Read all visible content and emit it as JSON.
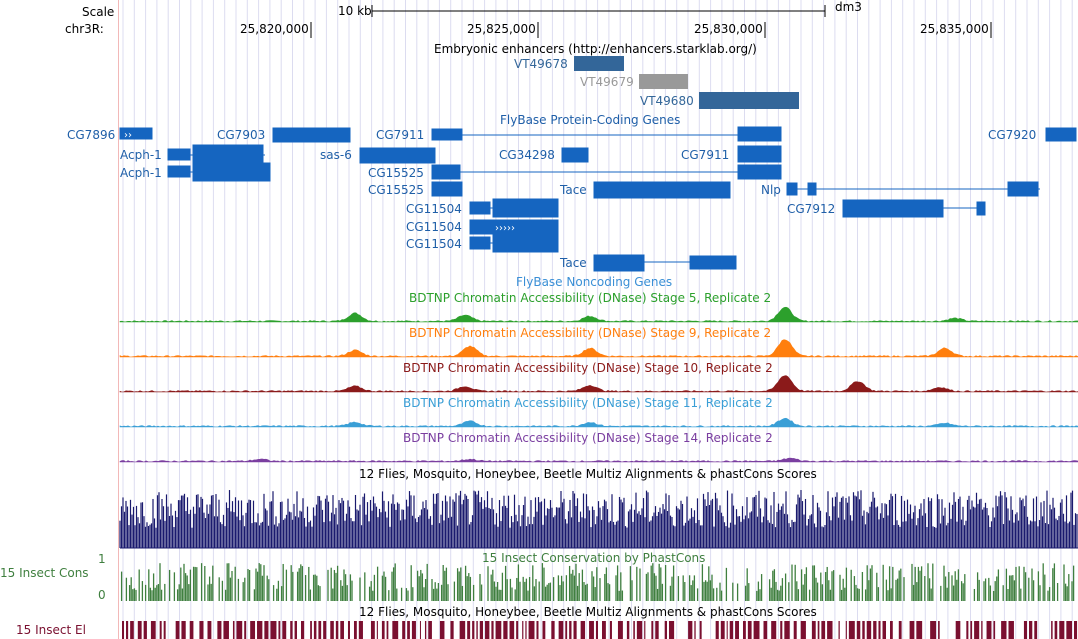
{
  "ruler": {
    "scale_label": "Scale",
    "chrom_label": "chr3R:",
    "scale_text": "10 kb",
    "assembly": "dm3",
    "ticks": [
      {
        "label": "25,820,000",
        "pos": 25820000
      },
      {
        "label": "25,825,000",
        "pos": 25825000
      },
      {
        "label": "25,830,000",
        "pos": 25830000
      },
      {
        "label": "25,835,000",
        "pos": 25835000
      }
    ]
  },
  "tracks": {
    "enhancers": {
      "title": "Embryonic enhancers (http://enhancers.starklab.org/)",
      "items": [
        {
          "name": "VT49678",
          "color": "#336699"
        },
        {
          "name": "VT49679",
          "color": "#999999"
        },
        {
          "name": "VT49680",
          "color": "#336699"
        }
      ]
    },
    "flybase_coding": {
      "title": "FlyBase Protein-Coding Genes",
      "genes": [
        "CG7896",
        "CG7903",
        "CG7911",
        "CG7920",
        "Acph-1",
        "sas-6",
        "CG34298",
        "CG7911",
        "Acph-1",
        "CG15525",
        "CG15525",
        "Tace",
        "Nlp",
        "CG7912",
        "CG11504",
        "CG11504",
        "CG11504"
      ]
    },
    "flybase_noncoding": {
      "title": "FlyBase Noncoding Genes",
      "genes": [
        "Tace"
      ]
    },
    "dnase": [
      {
        "title": "BDTNP Chromatin Accessibility (DNase) Stage 5, Replicate 2",
        "color": "#2ca02c"
      },
      {
        "title": "BDTNP Chromatin Accessibility (DNase) Stage 9, Replicate 2",
        "color": "#ff7f0e"
      },
      {
        "title": "BDTNP Chromatin Accessibility (DNase) Stage 10, Replicate 2",
        "color": "#8b1a1a"
      },
      {
        "title": "BDTNP Chromatin Accessibility (DNase) Stage 11, Replicate 2",
        "color": "#3a9fd6"
      },
      {
        "title": "BDTNP Chromatin Accessibility (DNase) Stage 14, Replicate 2",
        "color": "#7b3fa0"
      }
    ],
    "multiz": {
      "title": "12 Flies, Mosquito, Honeybee, Beetle Multiz Alignments & phastCons Scores",
      "color": "#1a1a6e"
    },
    "phastcons": {
      "title": "15 Insect Conservation by PhastCons",
      "side_label": "15 Insect Cons",
      "axis_max": "1",
      "axis_min": "0",
      "color": "#3f7f3f"
    },
    "elements": {
      "title": "12 Flies, Mosquito, Honeybee, Beetle Multiz Alignments & phastCons Scores",
      "side_label": "15 Insect El",
      "color": "#7a1030"
    }
  }
}
